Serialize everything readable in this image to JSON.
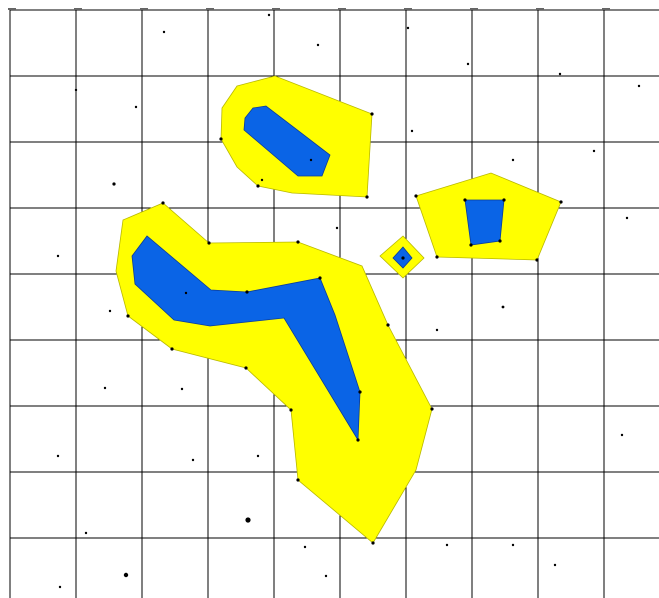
{
  "map": {
    "grid": {
      "columns": 10,
      "rows": 9,
      "visible": true
    },
    "colors": {
      "outer_region": "#ffff00",
      "inner_region": "#0a64e6",
      "grid": "#000000",
      "background": "#ffffff"
    },
    "regions": [
      {
        "id": "region-north",
        "outer_vertices": 8,
        "inner_vertices": 6
      },
      {
        "id": "region-east-pentagon",
        "outer_vertices": 5,
        "inner_vertices": 4
      },
      {
        "id": "region-small-diamond",
        "outer_vertices": 4,
        "inner_vertices": 4
      },
      {
        "id": "region-southwest-large",
        "outer_vertices": 16,
        "inner_vertices": 10
      }
    ]
  }
}
